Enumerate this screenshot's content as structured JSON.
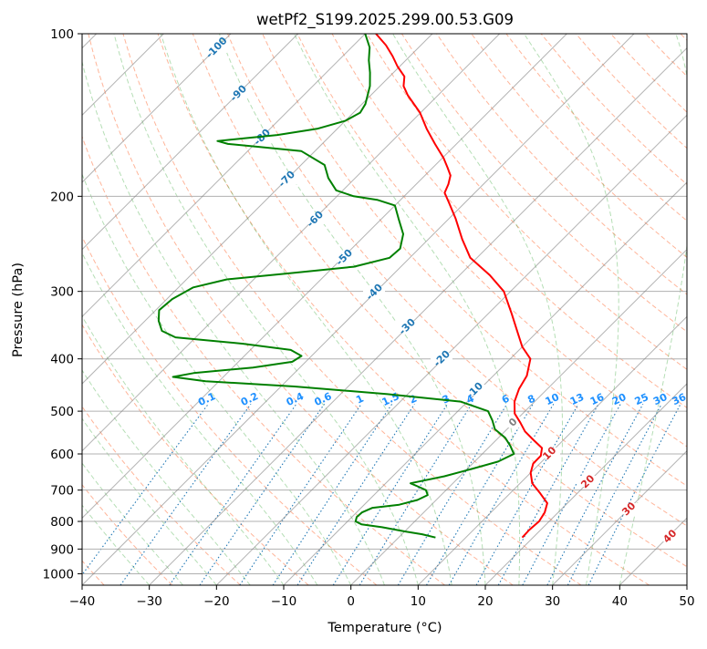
{
  "title": "wetPf2_S199.2025.299.00.53.G09",
  "xlabel": "Temperature (°C)",
  "ylabel": "Pressure (hPa)",
  "colors": {
    "temperature": "#ff0000",
    "dewpoint": "#008000",
    "dry_adiabat": "#ff4500",
    "moist_adiabat": "#2ca02c",
    "mixing_ratio": "#1f77b4",
    "isotherm": "#808080",
    "isotherm_label_cold": "#1f77b4",
    "isotherm_label_zero": "#808080",
    "isotherm_label_warm": "#d62728",
    "mixing_label": "#1e90ff"
  },
  "chart_data": {
    "type": "line",
    "skew": 45,
    "xlim": [
      -40,
      50
    ],
    "ylim": [
      1050,
      100
    ],
    "yscale": "log",
    "xticks": [
      "−40",
      "−30",
      "−20",
      "−10",
      "0",
      "10",
      "20",
      "30",
      "40",
      "50"
    ],
    "xtick_values": [
      -40,
      -30,
      -20,
      -10,
      0,
      10,
      20,
      30,
      40,
      50
    ],
    "yticks": [
      "100",
      "200",
      "300",
      "400",
      "500",
      "600",
      "700",
      "800",
      "900",
      "1000"
    ],
    "ytick_values": [
      100,
      200,
      300,
      400,
      500,
      600,
      700,
      800,
      900,
      1000
    ],
    "series": [
      {
        "key": "temperature",
        "points": [
          [
            857,
            18.4
          ],
          [
            830,
            18.3
          ],
          [
            800,
            18.5
          ],
          [
            770,
            18.0
          ],
          [
            740,
            17.0
          ],
          [
            710,
            14.5
          ],
          [
            680,
            11.8
          ],
          [
            650,
            10.0
          ],
          [
            625,
            9.0
          ],
          [
            605,
            9.0
          ],
          [
            585,
            8.0
          ],
          [
            565,
            5.5
          ],
          [
            545,
            3.0
          ],
          [
            525,
            1.0
          ],
          [
            505,
            -1.2
          ],
          [
            480,
            -3.0
          ],
          [
            455,
            -4.2
          ],
          [
            430,
            -5.0
          ],
          [
            400,
            -7.0
          ],
          [
            380,
            -10.0
          ],
          [
            360,
            -12.5
          ],
          [
            330,
            -16.5
          ],
          [
            300,
            -21.0
          ],
          [
            280,
            -25.5
          ],
          [
            260,
            -31.0
          ],
          [
            240,
            -35.0
          ],
          [
            220,
            -39.0
          ],
          [
            205,
            -42.5
          ],
          [
            197,
            -44.5
          ],
          [
            190,
            -45.2
          ],
          [
            183,
            -46.2
          ],
          [
            177,
            -47.8
          ],
          [
            170,
            -49.8
          ],
          [
            160,
            -53.2
          ],
          [
            150,
            -56.7
          ],
          [
            140,
            -60.1
          ],
          [
            130,
            -64.5
          ],
          [
            125,
            -66.5
          ],
          [
            120,
            -67.8
          ],
          [
            115,
            -70.3
          ],
          [
            110,
            -72.6
          ],
          [
            105,
            -75.2
          ],
          [
            100,
            -78.4
          ]
        ]
      },
      {
        "key": "dewpoint",
        "points": [
          [
            857,
            5.5
          ],
          [
            845,
            3.0
          ],
          [
            835,
            0.0
          ],
          [
            820,
            -4.0
          ],
          [
            810,
            -7.5
          ],
          [
            800,
            -8.8
          ],
          [
            785,
            -9.3
          ],
          [
            770,
            -9.2
          ],
          [
            755,
            -8.3
          ],
          [
            745,
            -4.8
          ],
          [
            730,
            -2.8
          ],
          [
            715,
            -2.0
          ],
          [
            700,
            -3.0
          ],
          [
            690,
            -4.6
          ],
          [
            680,
            -6.3
          ],
          [
            660,
            -2.3
          ],
          [
            640,
            0.6
          ],
          [
            620,
            3.5
          ],
          [
            600,
            4.7
          ],
          [
            580,
            3.0
          ],
          [
            560,
            1.0
          ],
          [
            540,
            -1.8
          ],
          [
            520,
            -3.5
          ],
          [
            500,
            -5.5
          ],
          [
            480,
            -11.0
          ],
          [
            465,
            -23.0
          ],
          [
            450,
            -38.0
          ],
          [
            440,
            -52.0
          ],
          [
            432,
            -57.5
          ],
          [
            425,
            -55.0
          ],
          [
            415,
            -47.0
          ],
          [
            405,
            -42.0
          ],
          [
            395,
            -41.5
          ],
          [
            385,
            -44.0
          ],
          [
            375,
            -52.0
          ],
          [
            365,
            -63.0
          ],
          [
            355,
            -66.0
          ],
          [
            340,
            -68.0
          ],
          [
            325,
            -69.5
          ],
          [
            310,
            -69.2
          ],
          [
            295,
            -67.8
          ],
          [
            285,
            -64.0
          ],
          [
            278,
            -56.0
          ],
          [
            270,
            -47.0
          ],
          [
            260,
            -43.0
          ],
          [
            250,
            -42.8
          ],
          [
            235,
            -44.5
          ],
          [
            220,
            -47.5
          ],
          [
            208,
            -50.0
          ],
          [
            203,
            -53.5
          ],
          [
            200,
            -57.5
          ],
          [
            195,
            -61.0
          ],
          [
            185,
            -64.0
          ],
          [
            175,
            -66.5
          ],
          [
            165,
            -72.0
          ],
          [
            162,
            -79.0
          ],
          [
            160,
            -84.0
          ],
          [
            158,
            -86.0
          ],
          [
            156,
            -82.0
          ],
          [
            154,
            -78.0
          ],
          [
            150,
            -73.0
          ],
          [
            145,
            -70.0
          ],
          [
            140,
            -69.0
          ],
          [
            135,
            -69.5
          ],
          [
            125,
            -71.5
          ],
          [
            118,
            -73.5
          ],
          [
            112,
            -75.5
          ],
          [
            106,
            -77.3
          ],
          [
            100,
            -80.0
          ]
        ]
      }
    ],
    "isotherm_labels": [
      "-100",
      "-90",
      "-80",
      "-70",
      "-60",
      "-50",
      "-40",
      "-30",
      "-20",
      "-10",
      "0",
      "10",
      "20",
      "30",
      "40"
    ],
    "isotherm_label_values": [
      -100,
      -90,
      -80,
      -70,
      -60,
      -50,
      -40,
      -30,
      -20,
      -10,
      0,
      10,
      20,
      30,
      40
    ],
    "mixing_ratio_labels": [
      "0.1",
      "0.2",
      "0.4",
      "0.6",
      "1",
      "1.5",
      "2",
      "3",
      "4",
      "6",
      "8",
      "10",
      "13",
      "16",
      "20",
      "25",
      "30",
      "36"
    ],
    "mixing_ratio_values": [
      0.1,
      0.2,
      0.4,
      0.6,
      1,
      1.5,
      2,
      3,
      4,
      6,
      8,
      10,
      13,
      16,
      20,
      25,
      30,
      36
    ],
    "mixing_ratio_label_pressure": 485,
    "grid": true,
    "dry_adiabats": true,
    "moist_adiabats": true
  }
}
